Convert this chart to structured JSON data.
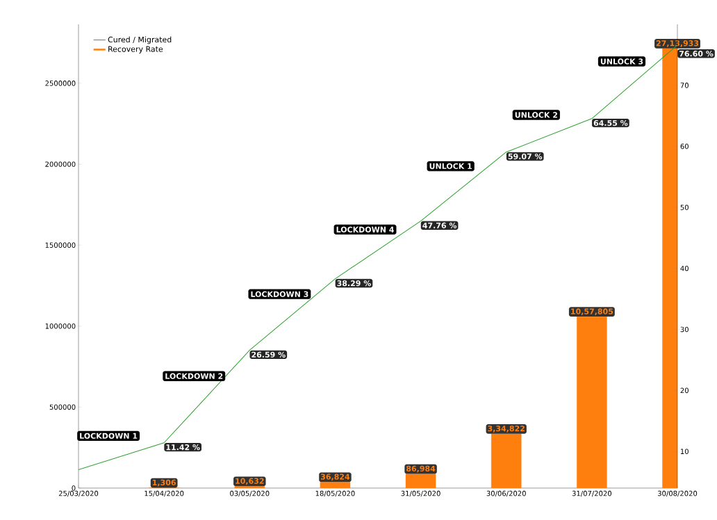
{
  "chart_data": {
    "type": "bar",
    "categories": [
      "25/03/2020",
      "15/04/2020",
      "03/05/2020",
      "18/05/2020",
      "31/05/2020",
      "30/06/2020",
      "31/07/2020",
      "30/08/2020"
    ],
    "series": [
      {
        "name": "Cured / Migrated",
        "type": "line",
        "axis": "y2",
        "color": "#2ca02c",
        "values": [
          7,
          11.42,
          26.59,
          38.29,
          47.76,
          59.07,
          64.55,
          76.6
        ],
        "value_labels": [
          null,
          "11.42 %",
          "26.59 %",
          "38.29 %",
          "47.76 %",
          "59.07 %",
          "64.55 %",
          "76.60 %"
        ]
      },
      {
        "name": "Recovery Rate",
        "color": "#ff7f0e",
        "values": [
          null,
          1306,
          10632,
          36824,
          86984,
          334822,
          1057805,
          2713933
        ],
        "value_labels": [
          null,
          "1,306",
          "10,632",
          "36,824",
          "86,984",
          "3,34,822",
          "10,57,805",
          "27,13,933"
        ]
      }
    ],
    "ylim": [
      0,
      2864000
    ],
    "yticks": [
      0,
      500000,
      1000000,
      1500000,
      2000000,
      2500000
    ],
    "y2lim": [
      4,
      80
    ],
    "y2ticks": [
      10,
      20,
      30,
      40,
      50,
      60,
      70
    ],
    "legend": "top left",
    "marker": "none",
    "line_style": "solid",
    "annotations": [
      "LOCKDOWN 1",
      "LOCKDOWN 2",
      "LOCKDOWN 3",
      "LOCKDOWN 4",
      "UNLOCK 1",
      "UNLOCK 2",
      "UNLOCK 3"
    ]
  }
}
